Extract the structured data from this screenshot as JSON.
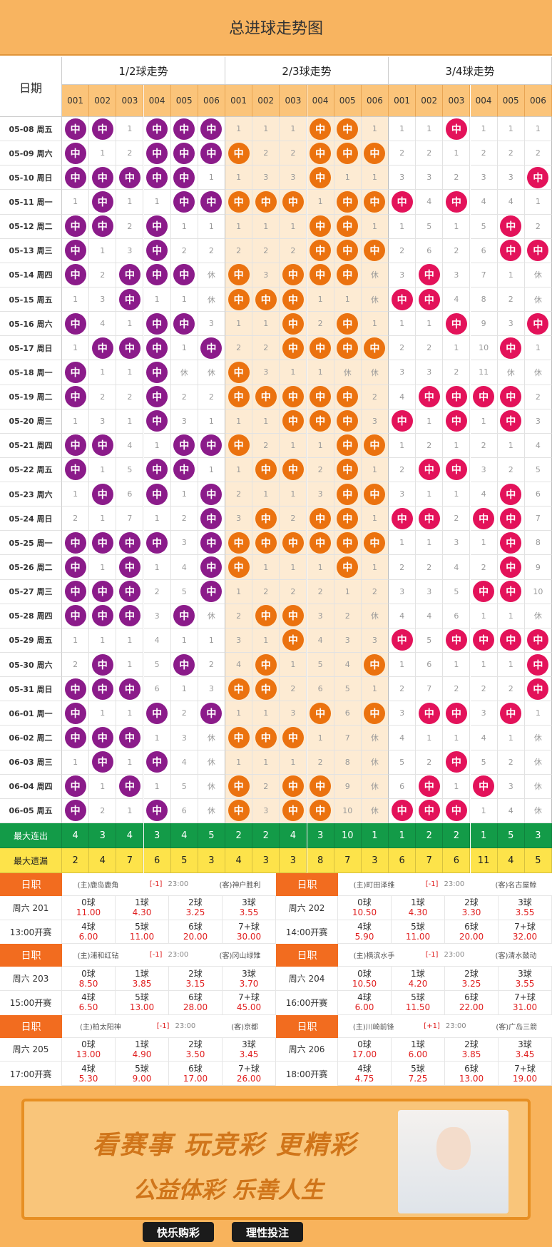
{
  "title": "总进球走势图",
  "header": {
    "date": "日期",
    "groups": [
      "1/2球走势",
      "2/3球走势",
      "3/4球走势"
    ],
    "codes": [
      "001",
      "002",
      "003",
      "004",
      "005",
      "006"
    ]
  },
  "rows": [
    {
      "date": "05-08 周五",
      "cells": [
        "中",
        "中",
        1,
        "中",
        "中",
        "中",
        1,
        1,
        1,
        "中",
        "中",
        1,
        1,
        1,
        "中",
        1,
        1,
        1
      ]
    },
    {
      "date": "05-09 周六",
      "cells": [
        "中",
        1,
        2,
        "中",
        "中",
        "中",
        "中",
        2,
        2,
        "中",
        "中",
        "中",
        2,
        2,
        1,
        2,
        2,
        2
      ]
    },
    {
      "date": "05-10 周日",
      "cells": [
        "中",
        "中",
        "中",
        "中",
        "中",
        1,
        1,
        3,
        3,
        "中",
        1,
        1,
        3,
        3,
        2,
        3,
        3,
        "中"
      ]
    },
    {
      "date": "05-11 周一",
      "cells": [
        1,
        "中",
        1,
        1,
        "中",
        "中",
        "中",
        "中",
        "中",
        1,
        "中",
        "中",
        "中",
        4,
        "中",
        4,
        4,
        1
      ]
    },
    {
      "date": "05-12 周二",
      "cells": [
        "中",
        "中",
        2,
        "中",
        1,
        1,
        1,
        1,
        1,
        "中",
        "中",
        1,
        1,
        5,
        1,
        5,
        "中",
        2
      ]
    },
    {
      "date": "05-13 周三",
      "cells": [
        "中",
        1,
        3,
        "中",
        2,
        2,
        2,
        2,
        2,
        "中",
        "中",
        "中",
        2,
        6,
        2,
        6,
        "中",
        "中"
      ]
    },
    {
      "date": "05-14 周四",
      "cells": [
        "中",
        2,
        "中",
        "中",
        "中",
        "休",
        "中",
        3,
        "中",
        "中",
        "中",
        "休",
        3,
        "中",
        3,
        7,
        1,
        "休"
      ]
    },
    {
      "date": "05-15 周五",
      "cells": [
        1,
        3,
        "中",
        1,
        1,
        "休",
        "中",
        "中",
        "中",
        1,
        1,
        "休",
        "中",
        "中",
        4,
        8,
        2,
        "休"
      ]
    },
    {
      "date": "05-16 周六",
      "cells": [
        "中",
        4,
        1,
        "中",
        "中",
        3,
        1,
        1,
        "中",
        2,
        "中",
        1,
        1,
        1,
        "中",
        9,
        3,
        "中"
      ]
    },
    {
      "date": "05-17 周日",
      "cells": [
        1,
        "中",
        "中",
        "中",
        1,
        "中",
        2,
        2,
        "中",
        "中",
        "中",
        "中",
        2,
        2,
        1,
        10,
        "中",
        1
      ]
    },
    {
      "date": "05-18 周一",
      "cells": [
        "中",
        1,
        1,
        "中",
        "休",
        "休",
        "中",
        3,
        1,
        1,
        "休",
        "休",
        3,
        3,
        2,
        11,
        "休",
        "休"
      ]
    },
    {
      "date": "05-19 周二",
      "cells": [
        "中",
        2,
        2,
        "中",
        2,
        2,
        "中",
        "中",
        "中",
        "中",
        "中",
        2,
        4,
        "中",
        "中",
        "中",
        "中",
        2
      ]
    },
    {
      "date": "05-20 周三",
      "cells": [
        1,
        3,
        1,
        "中",
        3,
        1,
        1,
        1,
        "中",
        "中",
        "中",
        3,
        "中",
        1,
        "中",
        1,
        "中",
        3
      ]
    },
    {
      "date": "05-21 周四",
      "cells": [
        "中",
        "中",
        4,
        1,
        "中",
        "中",
        "中",
        2,
        1,
        1,
        "中",
        "中",
        1,
        2,
        1,
        2,
        1,
        4
      ]
    },
    {
      "date": "05-22 周五",
      "cells": [
        "中",
        1,
        5,
        "中",
        "中",
        1,
        1,
        "中",
        "中",
        2,
        "中",
        1,
        2,
        "中",
        "中",
        3,
        2,
        5
      ]
    },
    {
      "date": "05-23 周六",
      "cells": [
        1,
        "中",
        6,
        "中",
        1,
        "中",
        2,
        1,
        1,
        3,
        "中",
        "中",
        3,
        1,
        1,
        4,
        "中",
        6
      ]
    },
    {
      "date": "05-24 周日",
      "cells": [
        2,
        1,
        7,
        1,
        2,
        "中",
        3,
        "中",
        2,
        "中",
        "中",
        1,
        "中",
        "中",
        2,
        "中",
        "中",
        7
      ]
    },
    {
      "date": "05-25 周一",
      "cells": [
        "中",
        "中",
        "中",
        "中",
        3,
        "中",
        "中",
        "中",
        "中",
        "中",
        "中",
        "中",
        1,
        1,
        3,
        1,
        "中",
        8
      ]
    },
    {
      "date": "05-26 周二",
      "cells": [
        "中",
        1,
        "中",
        1,
        4,
        "中",
        "中",
        1,
        1,
        1,
        "中",
        1,
        2,
        2,
        4,
        2,
        "中",
        9
      ]
    },
    {
      "date": "05-27 周三",
      "cells": [
        "中",
        "中",
        "中",
        2,
        5,
        "中",
        1,
        2,
        2,
        2,
        1,
        2,
        3,
        3,
        5,
        "中",
        "中",
        10
      ]
    },
    {
      "date": "05-28 周四",
      "cells": [
        "中",
        "中",
        "中",
        3,
        "中",
        "休",
        2,
        "中",
        "中",
        3,
        2,
        "休",
        4,
        4,
        6,
        1,
        1,
        "休"
      ]
    },
    {
      "date": "05-29 周五",
      "cells": [
        1,
        1,
        1,
        4,
        1,
        1,
        3,
        1,
        "中",
        4,
        3,
        3,
        "中",
        5,
        "中",
        "中",
        "中",
        "中"
      ]
    },
    {
      "date": "05-30 周六",
      "cells": [
        2,
        "中",
        1,
        5,
        "中",
        2,
        4,
        "中",
        1,
        5,
        4,
        "中",
        1,
        6,
        1,
        1,
        1,
        "中"
      ]
    },
    {
      "date": "05-31 周日",
      "cells": [
        "中",
        "中",
        "中",
        6,
        1,
        3,
        "中",
        "中",
        2,
        6,
        5,
        1,
        2,
        7,
        2,
        2,
        2,
        "中"
      ]
    },
    {
      "date": "06-01 周一",
      "cells": [
        "中",
        1,
        1,
        "中",
        2,
        "中",
        1,
        1,
        3,
        "中",
        6,
        "中",
        3,
        "中",
        "中",
        3,
        "中",
        1
      ]
    },
    {
      "date": "06-02 周二",
      "cells": [
        "中",
        "中",
        "中",
        1,
        3,
        "休",
        "中",
        "中",
        "中",
        1,
        7,
        "休",
        4,
        1,
        1,
        4,
        1,
        "休"
      ]
    },
    {
      "date": "06-03 周三",
      "cells": [
        1,
        "中",
        1,
        "中",
        4,
        "休",
        1,
        1,
        1,
        2,
        8,
        "休",
        5,
        2,
        "中",
        5,
        2,
        "休"
      ]
    },
    {
      "date": "06-04 周四",
      "cells": [
        "中",
        1,
        "中",
        1,
        5,
        "休",
        "中",
        2,
        "中",
        "中",
        9,
        "休",
        6,
        "中",
        1,
        "中",
        3,
        "休"
      ]
    },
    {
      "date": "06-05 周五",
      "cells": [
        "中",
        2,
        1,
        "中",
        6,
        "休",
        "中",
        3,
        "中",
        "中",
        10,
        "休",
        "中",
        "中",
        "中",
        1,
        4,
        "休"
      ]
    }
  ],
  "stats": [
    {
      "label": "最大连出",
      "values": [
        4,
        3,
        4,
        3,
        4,
        5,
        2,
        2,
        4,
        3,
        10,
        1,
        1,
        2,
        2,
        1,
        5,
        3
      ]
    },
    {
      "label": "最大遗漏",
      "values": [
        2,
        4,
        7,
        6,
        5,
        3,
        4,
        3,
        3,
        8,
        7,
        3,
        6,
        7,
        6,
        11,
        4,
        5
      ]
    }
  ],
  "matches": [
    {
      "league": "日职",
      "home": "(主)鹿岛鹿角",
      "handicap": "[-1]",
      "time": "23:00",
      "away": "(客)神户胜利",
      "num": "周六 201",
      "start": "13:00开赛",
      "odds": [
        {
          "goal": "0球",
          "odd": "11.00"
        },
        {
          "goal": "1球",
          "odd": "4.30"
        },
        {
          "goal": "2球",
          "odd": "3.25"
        },
        {
          "goal": "3球",
          "odd": "3.55"
        },
        {
          "goal": "4球",
          "odd": "6.00"
        },
        {
          "goal": "5球",
          "odd": "11.00"
        },
        {
          "goal": "6球",
          "odd": "20.00"
        },
        {
          "goal": "7+球",
          "odd": "30.00"
        }
      ]
    },
    {
      "league": "日职",
      "home": "(主)町田泽维",
      "handicap": "[-1]",
      "time": "23:00",
      "away": "(客)名古屋鲸",
      "num": "周六 202",
      "start": "14:00开赛",
      "odds": [
        {
          "goal": "0球",
          "odd": "10.50"
        },
        {
          "goal": "1球",
          "odd": "4.30"
        },
        {
          "goal": "2球",
          "odd": "3.30"
        },
        {
          "goal": "3球",
          "odd": "3.55"
        },
        {
          "goal": "4球",
          "odd": "5.90"
        },
        {
          "goal": "5球",
          "odd": "11.00"
        },
        {
          "goal": "6球",
          "odd": "20.00"
        },
        {
          "goal": "7+球",
          "odd": "32.00"
        }
      ]
    },
    {
      "league": "日职",
      "home": "(主)浦和红钻",
      "handicap": "[-1]",
      "time": "23:00",
      "away": "(客)冈山绿雉",
      "num": "周六 203",
      "start": "15:00开赛",
      "odds": [
        {
          "goal": "0球",
          "odd": "8.50"
        },
        {
          "goal": "1球",
          "odd": "3.85"
        },
        {
          "goal": "2球",
          "odd": "3.15"
        },
        {
          "goal": "3球",
          "odd": "3.70"
        },
        {
          "goal": "4球",
          "odd": "6.50"
        },
        {
          "goal": "5球",
          "odd": "13.00"
        },
        {
          "goal": "6球",
          "odd": "28.00"
        },
        {
          "goal": "7+球",
          "odd": "45.00"
        }
      ]
    },
    {
      "league": "日职",
      "home": "(主)横滨水手",
      "handicap": "[-1]",
      "time": "23:00",
      "away": "(客)清水鼓动",
      "num": "周六 204",
      "start": "16:00开赛",
      "odds": [
        {
          "goal": "0球",
          "odd": "10.50"
        },
        {
          "goal": "1球",
          "odd": "4.20"
        },
        {
          "goal": "2球",
          "odd": "3.25"
        },
        {
          "goal": "3球",
          "odd": "3.55"
        },
        {
          "goal": "4球",
          "odd": "6.00"
        },
        {
          "goal": "5球",
          "odd": "11.50"
        },
        {
          "goal": "6球",
          "odd": "22.00"
        },
        {
          "goal": "7+球",
          "odd": "31.00"
        }
      ]
    },
    {
      "league": "日职",
      "home": "(主)柏太阳神",
      "handicap": "[-1]",
      "time": "23:00",
      "away": "(客)京都",
      "num": "周六 205",
      "start": "17:00开赛",
      "odds": [
        {
          "goal": "0球",
          "odd": "13.00"
        },
        {
          "goal": "1球",
          "odd": "4.90"
        },
        {
          "goal": "2球",
          "odd": "3.50"
        },
        {
          "goal": "3球",
          "odd": "3.45"
        },
        {
          "goal": "4球",
          "odd": "5.30"
        },
        {
          "goal": "5球",
          "odd": "9.00"
        },
        {
          "goal": "6球",
          "odd": "17.00"
        },
        {
          "goal": "7+球",
          "odd": "26.00"
        }
      ]
    },
    {
      "league": "日职",
      "home": "(主)川崎前锋",
      "handicap": "[+1]",
      "time": "23:00",
      "away": "(客)广岛三箭",
      "num": "周六 206",
      "start": "18:00开赛",
      "odds": [
        {
          "goal": "0球",
          "odd": "17.00"
        },
        {
          "goal": "1球",
          "odd": "6.00"
        },
        {
          "goal": "2球",
          "odd": "3.85"
        },
        {
          "goal": "3球",
          "odd": "3.45"
        },
        {
          "goal": "4球",
          "odd": "4.75"
        },
        {
          "goal": "5球",
          "odd": "7.25"
        },
        {
          "goal": "6球",
          "odd": "13.00"
        },
        {
          "goal": "7+球",
          "odd": "19.00"
        }
      ]
    }
  ],
  "banner": {
    "slogan": "看赛事 玩竞彩 更精彩",
    "motto": "公益体彩 乐善人生",
    "tag1": "快乐购彩",
    "tag2": "理性投注"
  }
}
